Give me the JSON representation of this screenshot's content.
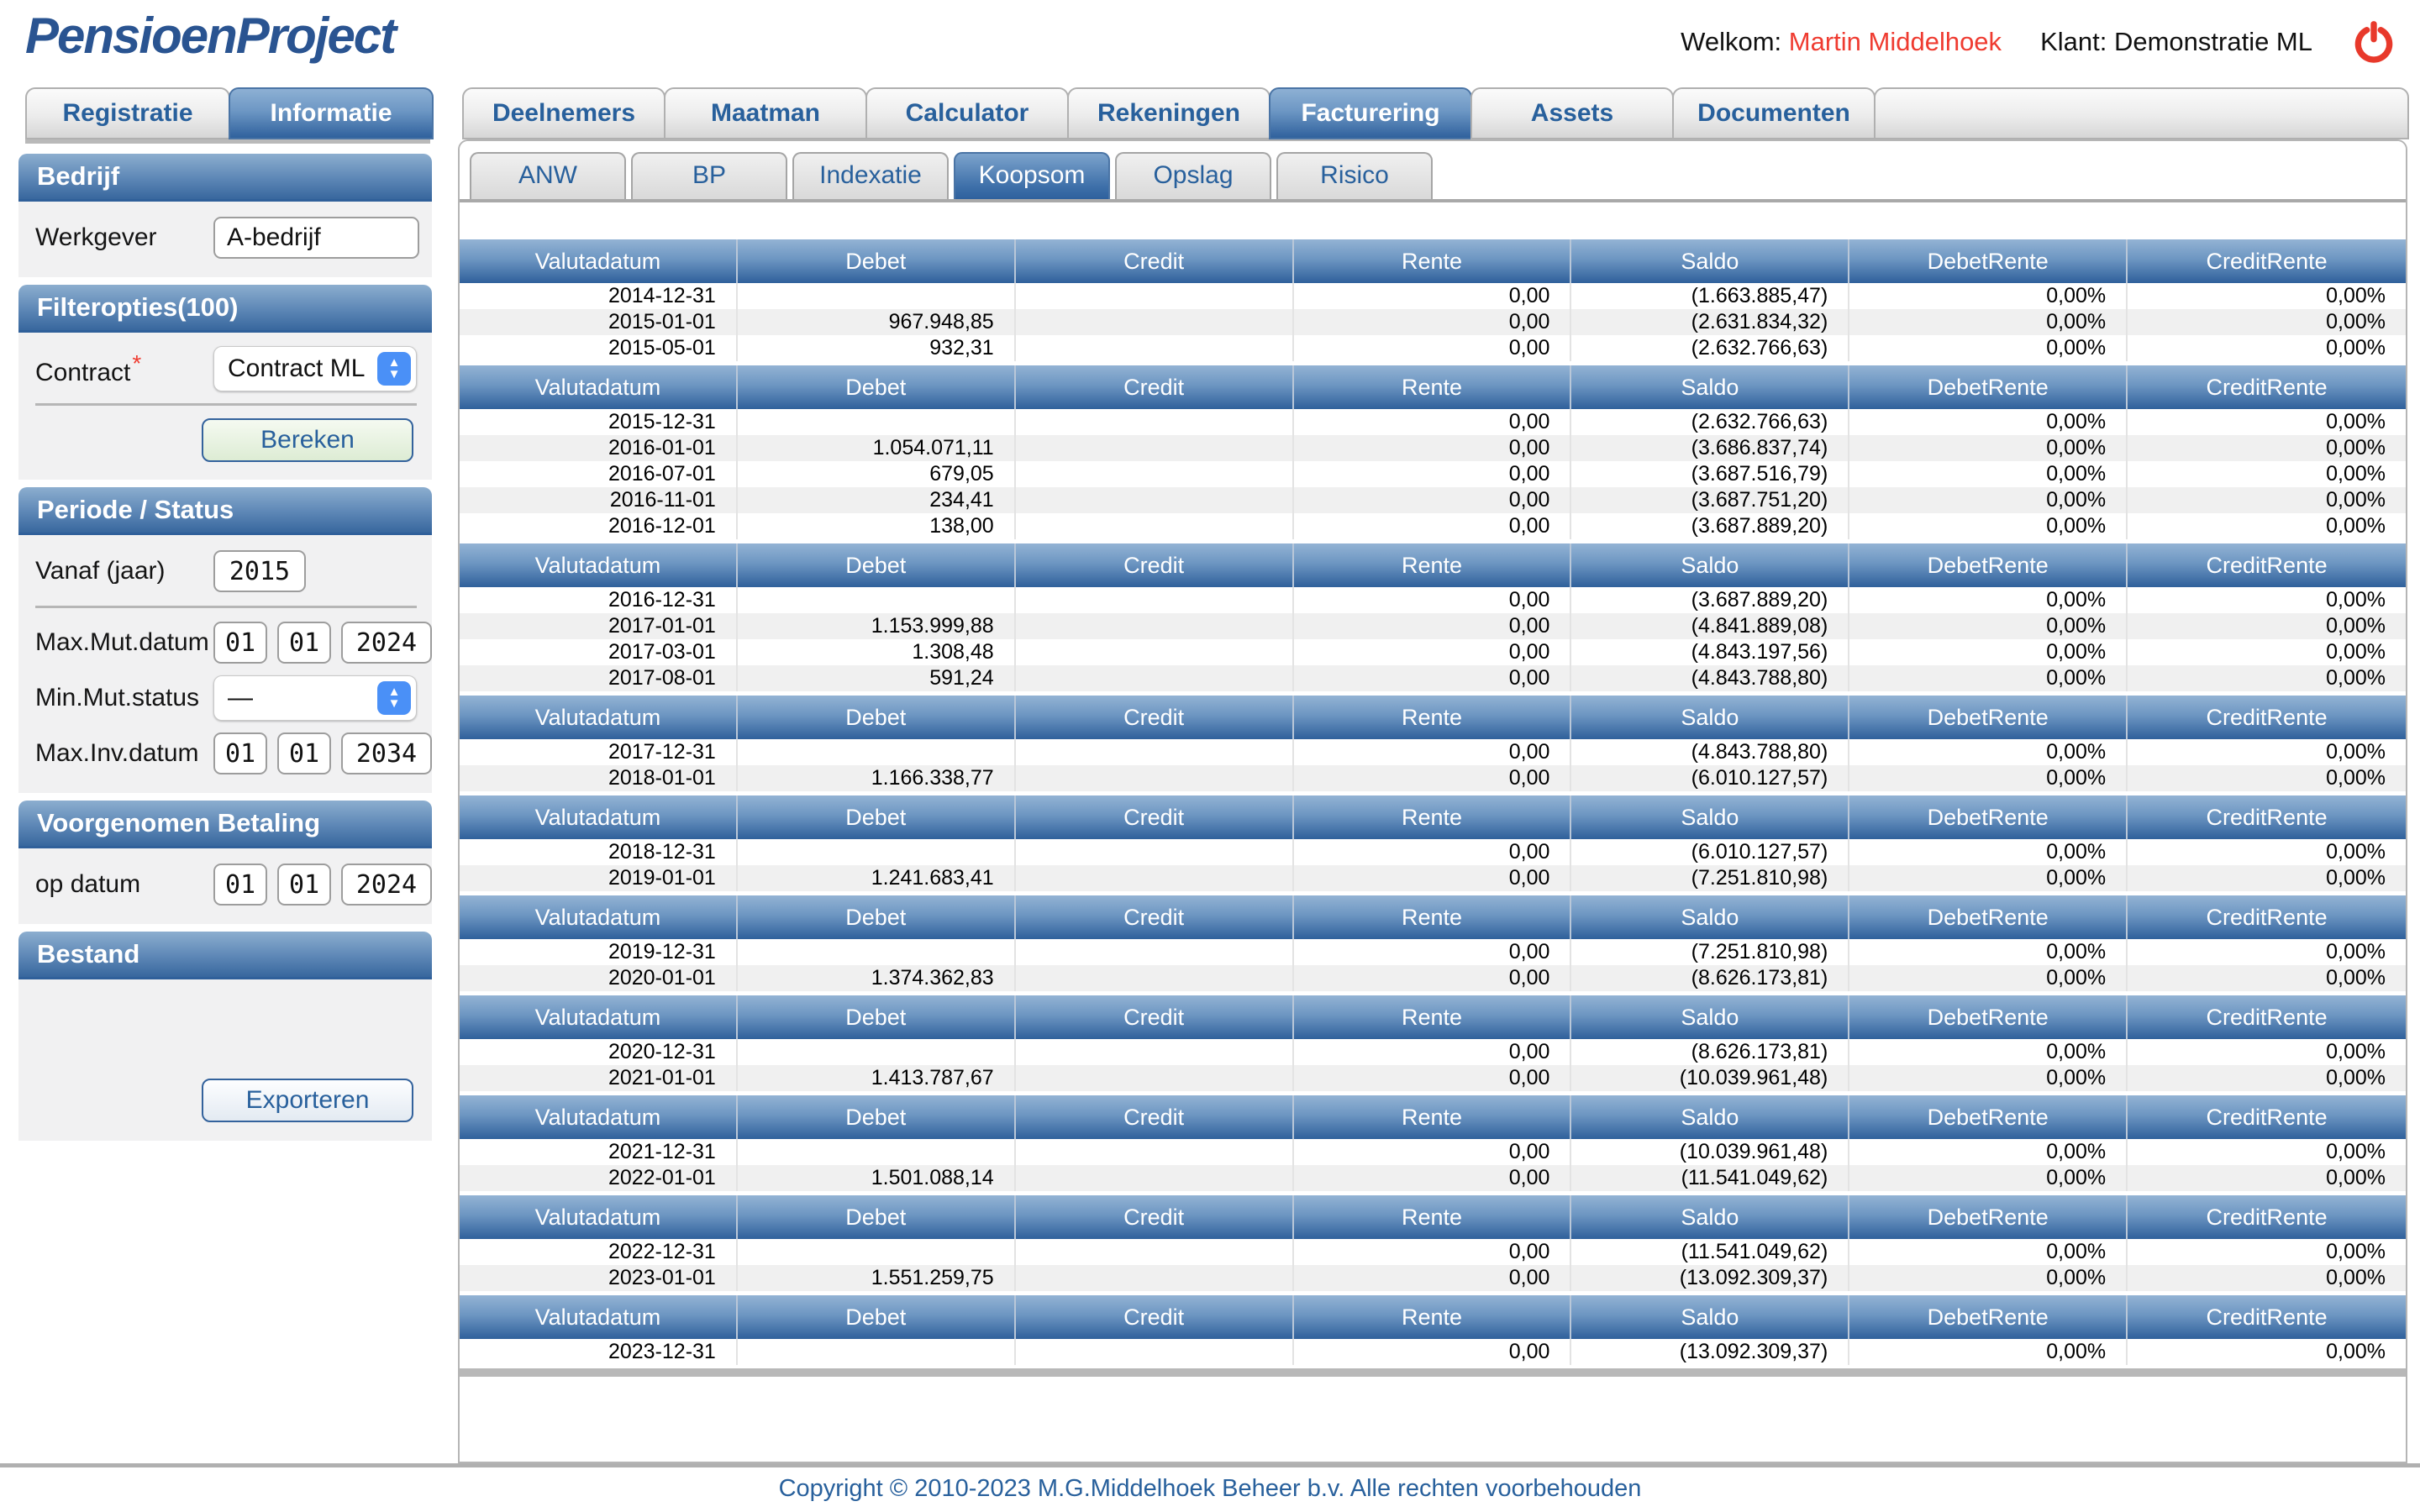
{
  "colors": {
    "accent_blue": "#28609c",
    "logo_blue": "#2a5491",
    "alert_red": "#ef3b30",
    "table_header_gradient_top": "#93b3d4",
    "table_header_gradient_bottom": "#2f609b",
    "row_alt": "#f0f0f0"
  },
  "header": {
    "logo": "PensioenProject",
    "welcome_label": "Welkom:",
    "user_name": "Martin Middelhoek",
    "client_label": "Klant:",
    "client_name": "Demonstratie ML"
  },
  "main_tabs": {
    "left": [
      {
        "label": "Registratie",
        "active": false
      },
      {
        "label": "Informatie",
        "active": true
      }
    ],
    "right": [
      {
        "label": "Deelnemers",
        "active": false
      },
      {
        "label": "Maatman",
        "active": false
      },
      {
        "label": "Calculator",
        "active": false
      },
      {
        "label": "Rekeningen",
        "active": false
      },
      {
        "label": "Facturering",
        "active": true
      },
      {
        "label": "Assets",
        "active": false
      },
      {
        "label": "Documenten",
        "active": false
      }
    ]
  },
  "sub_tabs": [
    {
      "label": "ANW",
      "active": false
    },
    {
      "label": "BP",
      "active": false
    },
    {
      "label": "Indexatie",
      "active": false
    },
    {
      "label": "Koopsom",
      "active": true
    },
    {
      "label": "Opslag",
      "active": false
    },
    {
      "label": "Risico",
      "active": false
    }
  ],
  "sidebar": {
    "bedrijf": {
      "title": "Bedrijf",
      "werkgever_label": "Werkgever",
      "werkgever_value": "A-bedrijf"
    },
    "filteropties": {
      "title": "Filteropties(100)",
      "contract_label": "Contract",
      "required_mark": "*",
      "contract_value": "Contract ML",
      "bereken_label": "Bereken"
    },
    "periode": {
      "title": "Periode / Status",
      "vanaf_label": "Vanaf (jaar)",
      "vanaf_value": "2015",
      "max_mut_label": "Max.Mut.datum",
      "max_mut_day": "01",
      "max_mut_month": "01",
      "max_mut_year": "2024",
      "min_mut_label": "Min.Mut.status",
      "min_mut_value": "—",
      "max_inv_label": "Max.Inv.datum",
      "max_inv_day": "01",
      "max_inv_month": "01",
      "max_inv_year": "2034"
    },
    "betaling": {
      "title": "Voorgenomen Betaling",
      "op_datum_label": "op datum",
      "day": "01",
      "month": "01",
      "year": "2024"
    },
    "bestand": {
      "title": "Bestand",
      "exporteren_label": "Exporteren"
    }
  },
  "table": {
    "columns": [
      "Valutadatum",
      "Debet",
      "Credit",
      "Rente",
      "Saldo",
      "DebetRente",
      "CreditRente"
    ],
    "groups": [
      {
        "rows": [
          [
            "2014-12-31",
            "",
            "",
            "0,00",
            "(1.663.885,47)",
            "0,00%",
            "0,00%"
          ],
          [
            "2015-01-01",
            "967.948,85",
            "",
            "0,00",
            "(2.631.834,32)",
            "0,00%",
            "0,00%"
          ],
          [
            "2015-05-01",
            "932,31",
            "",
            "0,00",
            "(2.632.766,63)",
            "0,00%",
            "0,00%"
          ]
        ]
      },
      {
        "rows": [
          [
            "2015-12-31",
            "",
            "",
            "0,00",
            "(2.632.766,63)",
            "0,00%",
            "0,00%"
          ],
          [
            "2016-01-01",
            "1.054.071,11",
            "",
            "0,00",
            "(3.686.837,74)",
            "0,00%",
            "0,00%"
          ],
          [
            "2016-07-01",
            "679,05",
            "",
            "0,00",
            "(3.687.516,79)",
            "0,00%",
            "0,00%"
          ],
          [
            "2016-11-01",
            "234,41",
            "",
            "0,00",
            "(3.687.751,20)",
            "0,00%",
            "0,00%"
          ],
          [
            "2016-12-01",
            "138,00",
            "",
            "0,00",
            "(3.687.889,20)",
            "0,00%",
            "0,00%"
          ]
        ]
      },
      {
        "rows": [
          [
            "2016-12-31",
            "",
            "",
            "0,00",
            "(3.687.889,20)",
            "0,00%",
            "0,00%"
          ],
          [
            "2017-01-01",
            "1.153.999,88",
            "",
            "0,00",
            "(4.841.889,08)",
            "0,00%",
            "0,00%"
          ],
          [
            "2017-03-01",
            "1.308,48",
            "",
            "0,00",
            "(4.843.197,56)",
            "0,00%",
            "0,00%"
          ],
          [
            "2017-08-01",
            "591,24",
            "",
            "0,00",
            "(4.843.788,80)",
            "0,00%",
            "0,00%"
          ]
        ]
      },
      {
        "rows": [
          [
            "2017-12-31",
            "",
            "",
            "0,00",
            "(4.843.788,80)",
            "0,00%",
            "0,00%"
          ],
          [
            "2018-01-01",
            "1.166.338,77",
            "",
            "0,00",
            "(6.010.127,57)",
            "0,00%",
            "0,00%"
          ]
        ]
      },
      {
        "rows": [
          [
            "2018-12-31",
            "",
            "",
            "0,00",
            "(6.010.127,57)",
            "0,00%",
            "0,00%"
          ],
          [
            "2019-01-01",
            "1.241.683,41",
            "",
            "0,00",
            "(7.251.810,98)",
            "0,00%",
            "0,00%"
          ]
        ]
      },
      {
        "rows": [
          [
            "2019-12-31",
            "",
            "",
            "0,00",
            "(7.251.810,98)",
            "0,00%",
            "0,00%"
          ],
          [
            "2020-01-01",
            "1.374.362,83",
            "",
            "0,00",
            "(8.626.173,81)",
            "0,00%",
            "0,00%"
          ]
        ]
      },
      {
        "rows": [
          [
            "2020-12-31",
            "",
            "",
            "0,00",
            "(8.626.173,81)",
            "0,00%",
            "0,00%"
          ],
          [
            "2021-01-01",
            "1.413.787,67",
            "",
            "0,00",
            "(10.039.961,48)",
            "0,00%",
            "0,00%"
          ]
        ]
      },
      {
        "rows": [
          [
            "2021-12-31",
            "",
            "",
            "0,00",
            "(10.039.961,48)",
            "0,00%",
            "0,00%"
          ],
          [
            "2022-01-01",
            "1.501.088,14",
            "",
            "0,00",
            "(11.541.049,62)",
            "0,00%",
            "0,00%"
          ]
        ]
      },
      {
        "rows": [
          [
            "2022-12-31",
            "",
            "",
            "0,00",
            "(11.541.049,62)",
            "0,00%",
            "0,00%"
          ],
          [
            "2023-01-01",
            "1.551.259,75",
            "",
            "0,00",
            "(13.092.309,37)",
            "0,00%",
            "0,00%"
          ]
        ]
      },
      {
        "rows": [
          [
            "2023-12-31",
            "",
            "",
            "0,00",
            "(13.092.309,37)",
            "0,00%",
            "0,00%"
          ]
        ]
      }
    ]
  },
  "footer": {
    "copyright": "Copyright © 2010-2023 M.G.Middelhoek Beheer b.v. Alle rechten voorbehouden"
  }
}
